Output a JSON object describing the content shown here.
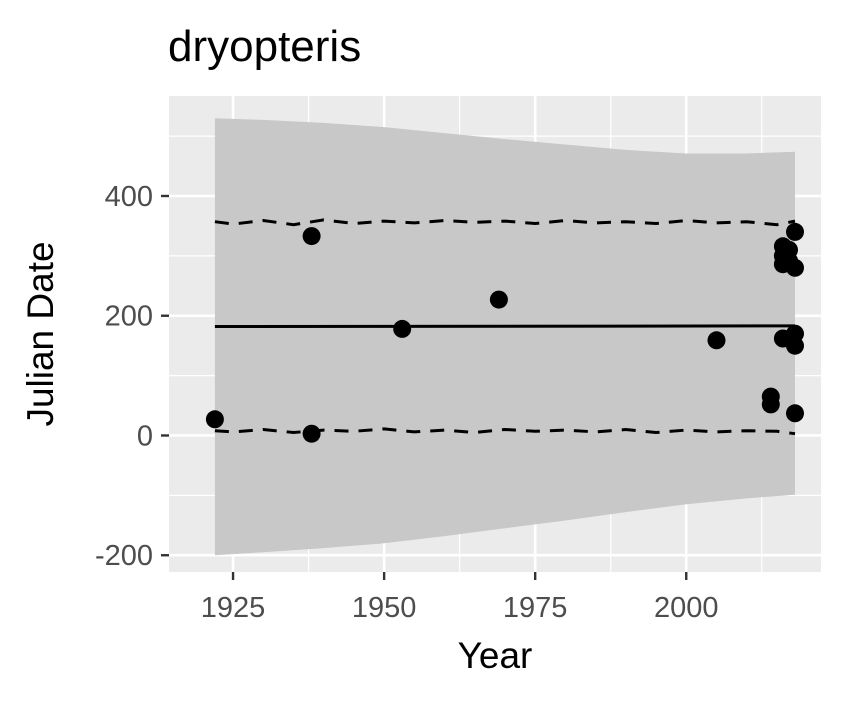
{
  "chart_data": {
    "type": "scatter",
    "title": "dryopteris",
    "xlabel": "Year",
    "ylabel": "Julian Date",
    "xlim": [
      1914.4,
      2022.3
    ],
    "ylim": [
      -228,
      567
    ],
    "xticks": [
      1925,
      1950,
      1975,
      2000
    ],
    "xtick_labels": [
      "1925",
      "1950",
      "1975",
      "2000"
    ],
    "yticks": [
      -200,
      0,
      200,
      400
    ],
    "ytick_labels": [
      "-200",
      "0",
      "200",
      "400"
    ],
    "grid": true,
    "legend": "none",
    "colors": {
      "panel_background": "#ebebeb",
      "grid": "#ffffff",
      "ribbon": "#c8c8c8",
      "points": "#000000",
      "line": "#000000"
    },
    "points": [
      {
        "x": 1922,
        "y": 27
      },
      {
        "x": 1938,
        "y": 333
      },
      {
        "x": 1938,
        "y": 3
      },
      {
        "x": 1953,
        "y": 178
      },
      {
        "x": 1969,
        "y": 227
      },
      {
        "x": 2005,
        "y": 159
      },
      {
        "x": 2014,
        "y": 65
      },
      {
        "x": 2014,
        "y": 52
      },
      {
        "x": 2016,
        "y": 316
      },
      {
        "x": 2016,
        "y": 300
      },
      {
        "x": 2016,
        "y": 286
      },
      {
        "x": 2016,
        "y": 162
      },
      {
        "x": 2017,
        "y": 310
      },
      {
        "x": 2017,
        "y": 292
      },
      {
        "x": 2018,
        "y": 340
      },
      {
        "x": 2018,
        "y": 280
      },
      {
        "x": 2018,
        "y": 170
      },
      {
        "x": 2018,
        "y": 150
      },
      {
        "x": 2018,
        "y": 37
      }
    ],
    "fit_line": {
      "x": [
        1922,
        2018
      ],
      "y": [
        182,
        183
      ]
    },
    "dashed_bounds": {
      "upper": {
        "x": [
          1922,
          1925,
          1930,
          1935,
          1940,
          1945,
          1950,
          1955,
          1960,
          1965,
          1970,
          1975,
          1980,
          1985,
          1990,
          1995,
          2000,
          2005,
          2010,
          2015,
          2018
        ],
        "y": [
          357,
          353,
          359,
          352,
          360,
          354,
          358,
          355,
          359,
          356,
          358,
          354,
          359,
          355,
          357,
          354,
          359,
          355,
          357,
          352,
          358
        ]
      },
      "lower": {
        "x": [
          1922,
          1925,
          1930,
          1935,
          1940,
          1945,
          1950,
          1955,
          1960,
          1965,
          1970,
          1975,
          1980,
          1985,
          1990,
          1995,
          2000,
          2005,
          2010,
          2015,
          2018
        ],
        "y": [
          8,
          6,
          10,
          5,
          9,
          7,
          11,
          6,
          9,
          5,
          10,
          7,
          9,
          6,
          10,
          5,
          9,
          6,
          8,
          7,
          3
        ]
      }
    },
    "ribbon": {
      "x": [
        1922,
        1930,
        1940,
        1950,
        1960,
        1970,
        1980,
        1990,
        2000,
        2010,
        2018
      ],
      "upper": [
        530,
        527,
        522,
        515,
        505,
        495,
        486,
        477,
        471,
        471,
        474
      ],
      "lower": [
        -200,
        -195,
        -188,
        -180,
        -168,
        -155,
        -142,
        -128,
        -115,
        -105,
        -99
      ]
    }
  }
}
